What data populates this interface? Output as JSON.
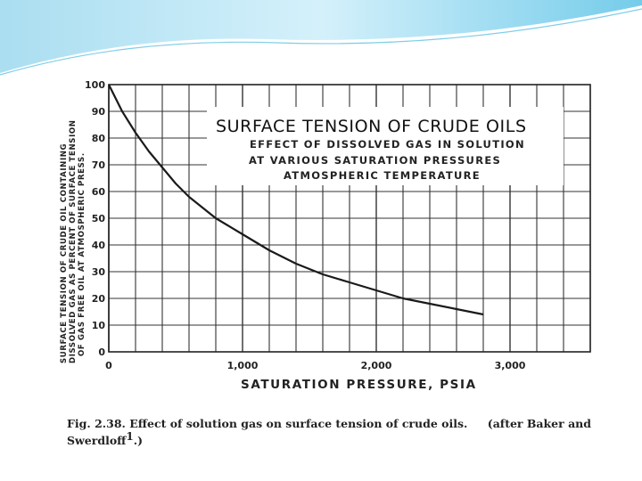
{
  "theme": {
    "accent": "#3bb4dc",
    "ink": "#222222"
  },
  "chart_data": {
    "type": "line",
    "title": "SURFACE TENSION OF CRUDE OILS",
    "subtitle_lines": [
      "EFFECT OF DISSOLVED GAS IN SOLUTION",
      "AT VARIOUS SATURATION PRESSURES",
      "ATMOSPHERIC TEMPERATURE"
    ],
    "xlabel": "SATURATION PRESSURE, PSIA",
    "ylabel_lines": [
      "SURFACE TENSION OF CRUDE OIL CONTAINING",
      "DISSOLVED GAS AS PERCENT OF SURFACE TENSION",
      "OF GAS FREE OIL AT ATMOSPHERIC PRESS."
    ],
    "xlim": [
      0,
      3600
    ],
    "ylim": [
      0,
      100
    ],
    "x_ticks": [
      0,
      1000,
      2000,
      3000
    ],
    "x_tick_labels": [
      "0",
      "1,000",
      "2,000",
      "3,000"
    ],
    "y_ticks": [
      0,
      10,
      20,
      30,
      40,
      50,
      60,
      70,
      80,
      90,
      100
    ],
    "y_tick_labels": [
      "0",
      "10",
      "20",
      "30",
      "40",
      "50",
      "60",
      "70",
      "80",
      "90",
      "100"
    ],
    "grid": true,
    "series": [
      {
        "x": [
          0,
          100,
          200,
          300,
          400,
          500,
          600,
          800,
          1000,
          1200,
          1400,
          1600,
          1800,
          2000,
          2200,
          2400,
          2600,
          2800
        ],
        "y": [
          100,
          90,
          82,
          75,
          69,
          63,
          58,
          50,
          44,
          38,
          33,
          29,
          26,
          23,
          20,
          18,
          16,
          14
        ]
      }
    ]
  },
  "caption": {
    "line1": "Fig. 2.38.  Effect of solution gas on surface tension of crude oils.",
    "attribution": "(after Baker and",
    "line2": "Swerdloff",
    "superscript": "1",
    "line2_end": ".)"
  }
}
